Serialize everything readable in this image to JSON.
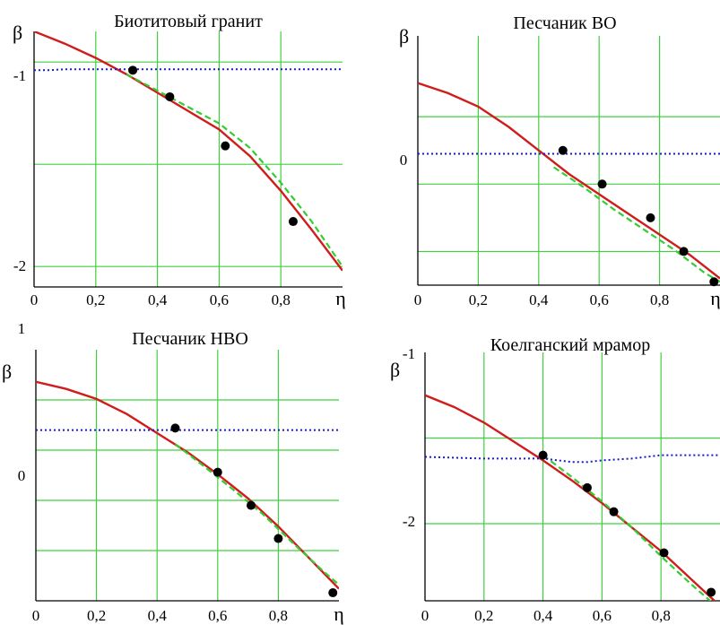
{
  "figure": {
    "colors": {
      "background": "#ffffff",
      "grid": "#3fd13f",
      "axis": "#000000",
      "model_curve": "#d11c1c",
      "fit_curve": "#33cc33",
      "threshold_line": "#1a1acc",
      "points": "#000000"
    }
  },
  "chart_data": [
    {
      "type": "line",
      "title": "Биотитовый гранит",
      "ylabel": "β",
      "xlabel": "η",
      "xlim": [
        0,
        1
      ],
      "ylim": [
        -2.1,
        -0.85
      ],
      "xticks": [
        0,
        0.2,
        0.4,
        0.6,
        0.8
      ],
      "xtick_labels": [
        "0",
        "0,2",
        "0,4",
        "0,6",
        "0,8"
      ],
      "yticks": [
        -1,
        -2
      ],
      "ytick_labels": [
        "-1",
        "-2"
      ],
      "ygrid": [
        -1,
        -1.5,
        -2
      ],
      "grid": true,
      "series": [
        {
          "style": "solid",
          "x": [
            0,
            0.1,
            0.2,
            0.3,
            0.4,
            0.5,
            0.6,
            0.7,
            0.8,
            0.9,
            1.0
          ],
          "y": [
            -0.85,
            -0.91,
            -0.98,
            -1.06,
            -1.15,
            -1.24,
            -1.33,
            -1.46,
            -1.63,
            -1.82,
            -2.02
          ]
        },
        {
          "style": "dashed",
          "x": [
            0.3,
            0.4,
            0.5,
            0.6,
            0.7,
            0.8,
            0.9,
            1.0
          ],
          "y": [
            -1.06,
            -1.14,
            -1.22,
            -1.3,
            -1.42,
            -1.59,
            -1.78,
            -2.0
          ]
        },
        {
          "style": "dotted",
          "x": [
            0,
            0.05,
            0.1,
            0.2,
            0.3,
            0.4,
            0.5,
            0.6,
            0.7,
            0.8,
            0.9,
            1.0
          ],
          "y": [
            -1.04,
            -1.04,
            -1.035,
            -1.035,
            -1.035,
            -1.035,
            -1.035,
            -1.035,
            -1.035,
            -1.035,
            -1.035,
            -1.035
          ]
        },
        {
          "style": "points",
          "x": [
            0.32,
            0.44,
            0.62,
            0.84
          ],
          "y": [
            -1.04,
            -1.17,
            -1.41,
            -1.78
          ]
        }
      ]
    },
    {
      "type": "line",
      "title": "Песчаник ВО",
      "ylabel": "β",
      "xlabel": "η",
      "xlim": [
        0,
        1
      ],
      "ylim": [
        -1.5,
        2.2
      ],
      "xticks": [
        0,
        0.2,
        0.4,
        0.6,
        0.8
      ],
      "xtick_labels": [
        "0",
        "0,2",
        "0,4",
        "0,6",
        "0,8"
      ],
      "yticks": [
        0
      ],
      "ytick_labels": [
        "0"
      ],
      "ygrid": [
        1,
        0,
        -1
      ],
      "grid": true,
      "series": [
        {
          "style": "solid",
          "x": [
            0,
            0.1,
            0.2,
            0.3,
            0.4,
            0.5,
            0.6,
            0.7,
            0.8,
            0.9,
            1.0
          ],
          "y": [
            1.5,
            1.35,
            1.15,
            0.85,
            0.5,
            0.15,
            -0.15,
            -0.45,
            -0.75,
            -1.05,
            -1.4
          ]
        },
        {
          "style": "dashed",
          "x": [
            0.45,
            0.55,
            0.65,
            0.75,
            0.85,
            0.95,
            1.0
          ],
          "y": [
            0.25,
            -0.05,
            -0.38,
            -0.68,
            -0.98,
            -1.32,
            -1.45
          ]
        },
        {
          "style": "dotted",
          "x": [
            0,
            0.2,
            0.4,
            0.6,
            0.8,
            1.0
          ],
          "y": [
            0.45,
            0.45,
            0.45,
            0.45,
            0.45,
            0.45
          ]
        },
        {
          "style": "points",
          "x": [
            0.48,
            0.61,
            0.77,
            0.88,
            0.98
          ],
          "y": [
            0.5,
            0.0,
            -0.5,
            -1.0,
            -1.45
          ]
        }
      ]
    },
    {
      "type": "line",
      "title": "Песчаник НВО",
      "ylabel": "β",
      "xlabel": "η",
      "xlim": [
        0,
        1
      ],
      "ylim": [
        -1.5,
        1.0
      ],
      "xticks": [
        0,
        0.2,
        0.4,
        0.6,
        0.8
      ],
      "xtick_labels": [
        "0",
        "0,2",
        "0,4",
        "0,6",
        "0,8"
      ],
      "yticks": [
        1,
        0
      ],
      "ytick_labels": [
        "1",
        "0"
      ],
      "ygrid": [
        0.5,
        0,
        -0.5,
        -1
      ],
      "grid": true,
      "series": [
        {
          "style": "solid",
          "x": [
            0,
            0.1,
            0.2,
            0.3,
            0.4,
            0.5,
            0.6,
            0.7,
            0.8,
            0.9,
            1.0
          ],
          "y": [
            0.68,
            0.61,
            0.51,
            0.36,
            0.17,
            -0.02,
            -0.24,
            -0.48,
            -0.76,
            -1.07,
            -1.38
          ]
        },
        {
          "style": "dashed",
          "x": [
            0.46,
            0.55,
            0.65,
            0.75,
            0.85,
            0.95,
            1.0
          ],
          "y": [
            0.06,
            -0.15,
            -0.39,
            -0.64,
            -0.93,
            -1.21,
            -1.34
          ]
        },
        {
          "style": "dotted",
          "x": [
            0,
            0.2,
            0.4,
            0.6,
            0.8,
            1.0
          ],
          "y": [
            0.2,
            0.2,
            0.2,
            0.2,
            0.2,
            0.2
          ]
        },
        {
          "style": "points",
          "x": [
            0.46,
            0.6,
            0.71,
            0.8,
            0.98
          ],
          "y": [
            0.22,
            -0.22,
            -0.55,
            -0.88,
            -1.42
          ]
        }
      ]
    },
    {
      "type": "line",
      "title": "Коелганский мрамор",
      "ylabel": "β",
      "xlabel": "",
      "xlim": [
        0,
        1
      ],
      "ylim": [
        -2.45,
        -1.0
      ],
      "xticks": [
        0,
        0.2,
        0.4,
        0.6,
        0.8
      ],
      "xtick_labels": [
        "0",
        "0,2",
        "0,4",
        "0,6",
        "0,8"
      ],
      "yticks": [
        -1,
        -2
      ],
      "ytick_labels": [
        "-1",
        "-2"
      ],
      "ygrid": [
        -1.5,
        -2.0
      ],
      "grid": true,
      "series": [
        {
          "style": "solid",
          "x": [
            0,
            0.1,
            0.2,
            0.3,
            0.4,
            0.5,
            0.6,
            0.7,
            0.8,
            0.9,
            1.0
          ],
          "y": [
            -1.25,
            -1.32,
            -1.41,
            -1.52,
            -1.63,
            -1.75,
            -1.88,
            -2.02,
            -2.16,
            -2.32,
            -2.48
          ]
        },
        {
          "style": "dashed",
          "x": [
            0.4,
            0.5,
            0.6,
            0.7,
            0.8,
            0.9,
            1.0
          ],
          "y": [
            -1.6,
            -1.73,
            -1.87,
            -2.02,
            -2.19,
            -2.35,
            -2.5
          ]
        },
        {
          "style": "dotted",
          "x": [
            0,
            0.2,
            0.4,
            0.5,
            0.55,
            0.6,
            0.7,
            0.8,
            0.9,
            1.0
          ],
          "y": [
            -1.61,
            -1.62,
            -1.62,
            -1.64,
            -1.64,
            -1.63,
            -1.62,
            -1.6,
            -1.6,
            -1.6
          ]
        },
        {
          "style": "points",
          "x": [
            0.4,
            0.55,
            0.64,
            0.81,
            0.97
          ],
          "y": [
            -1.6,
            -1.79,
            -1.93,
            -2.17,
            -2.4
          ]
        }
      ]
    }
  ]
}
